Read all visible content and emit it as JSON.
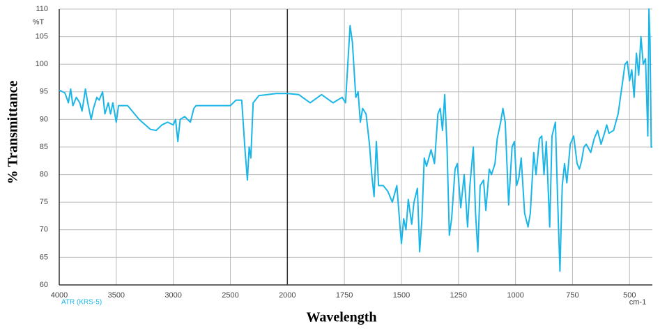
{
  "chart_data": {
    "type": "line",
    "y_title": "% Transmittance",
    "x_title": "Wavelength",
    "y_unit_label": "%T",
    "x_unit_label": "cm-1",
    "annotation": "ATR (KRS-5)",
    "color": "#1ab6e8",
    "grid": true,
    "xlim": [
      4000,
      400
    ],
    "x_scale_break": 2000,
    "x_scale_factor_below_break": 2,
    "xticks": [
      4000,
      3500,
      3000,
      2500,
      2000,
      1750,
      1500,
      1250,
      1000,
      750,
      500
    ],
    "ylim": [
      60,
      110
    ],
    "yticks": [
      60,
      65,
      70,
      75,
      80,
      85,
      90,
      95,
      100,
      105,
      110
    ],
    "x": [
      4000,
      3950,
      3920,
      3900,
      3880,
      3850,
      3820,
      3800,
      3770,
      3750,
      3720,
      3700,
      3670,
      3650,
      3620,
      3600,
      3570,
      3550,
      3530,
      3500,
      3480,
      3400,
      3300,
      3200,
      3150,
      3100,
      3050,
      3000,
      2980,
      2960,
      2940,
      2900,
      2850,
      2820,
      2800,
      2700,
      2600,
      2500,
      2450,
      2400,
      2370,
      2350,
      2335,
      2320,
      2300,
      2250,
      2100,
      2000,
      1950,
      1900,
      1850,
      1800,
      1760,
      1745,
      1735,
      1725,
      1715,
      1700,
      1690,
      1680,
      1670,
      1655,
      1640,
      1630,
      1620,
      1610,
      1600,
      1580,
      1560,
      1540,
      1520,
      1505,
      1500,
      1490,
      1480,
      1470,
      1455,
      1445,
      1430,
      1420,
      1410,
      1400,
      1390,
      1370,
      1355,
      1340,
      1330,
      1320,
      1310,
      1300,
      1290,
      1280,
      1265,
      1255,
      1240,
      1225,
      1210,
      1200,
      1185,
      1175,
      1165,
      1155,
      1140,
      1130,
      1115,
      1105,
      1090,
      1080,
      1065,
      1055,
      1045,
      1030,
      1015,
      1005,
      995,
      985,
      975,
      960,
      945,
      935,
      920,
      910,
      895,
      885,
      875,
      865,
      850,
      840,
      825,
      815,
      805,
      795,
      785,
      775,
      760,
      745,
      730,
      720,
      710,
      700,
      690,
      670,
      655,
      640,
      625,
      610,
      600,
      590,
      570,
      560,
      550,
      530,
      520,
      510,
      500,
      490,
      480,
      470,
      460,
      450,
      440,
      430,
      420,
      415,
      410,
      405,
      400
    ],
    "values": [
      95.3,
      94.8,
      93,
      95.5,
      92.5,
      94,
      93,
      91.5,
      95.5,
      93,
      90,
      92,
      94,
      93.5,
      95,
      91,
      93,
      91,
      93,
      89.5,
      92.5,
      92.5,
      90,
      88.2,
      88,
      89,
      89.5,
      89,
      90,
      86,
      90,
      90.5,
      89.5,
      92,
      92.5,
      92.5,
      92.5,
      92.5,
      93.5,
      93.5,
      84,
      79,
      85,
      83,
      93,
      94.3,
      94.7,
      94.7,
      94.5,
      93,
      94.5,
      93,
      94,
      93,
      100,
      107,
      104,
      94,
      95,
      89.5,
      92,
      91,
      85.5,
      80,
      76,
      86,
      78,
      78,
      77,
      75,
      78,
      70,
      67.5,
      72,
      70,
      75.5,
      71,
      75,
      77.5,
      66,
      72,
      83,
      81.5,
      84.5,
      82,
      91,
      92,
      88,
      94.5,
      85,
      69,
      72,
      81,
      82,
      74,
      80,
      70.5,
      78,
      85,
      73,
      66,
      78,
      79,
      73.5,
      81,
      80,
      82,
      86.5,
      89.5,
      92,
      89.5,
      74.5,
      85,
      86,
      78,
      79.5,
      83,
      73,
      70.5,
      73,
      84,
      80,
      86.5,
      87,
      80,
      86,
      70.5,
      87,
      89.5,
      75,
      62.5,
      78,
      82,
      78.5,
      85.5,
      87,
      82,
      81,
      82.5,
      85,
      85.5,
      84,
      86.5,
      88,
      85.5,
      87.5,
      89,
      87.5,
      88,
      89.5,
      91,
      97,
      100,
      100.5,
      97,
      99,
      94,
      102,
      98,
      105,
      100,
      101,
      87,
      110,
      104,
      85,
      85
    ]
  }
}
